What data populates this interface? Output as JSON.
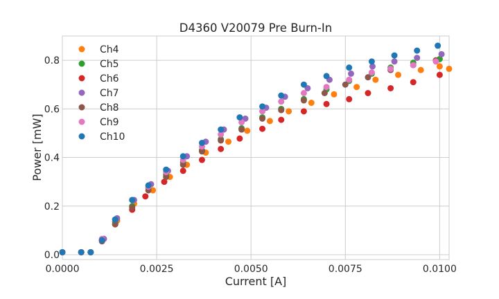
{
  "chart_data": {
    "type": "scatter",
    "title": "D4360 V20079 Pre Burn-In",
    "xlabel": "Current [A]",
    "ylabel": "Power [mW]",
    "xlim": [
      0.0,
      0.01025
    ],
    "ylim": [
      -0.02,
      0.9
    ],
    "xticks": [
      "0.0000",
      "0.0025",
      "0.0050",
      "0.0075",
      "0.0100"
    ],
    "yticks": [
      "0.0",
      "0.2",
      "0.4",
      "0.6",
      "0.8"
    ],
    "grid": true,
    "legend_position": "upper-left",
    "series": [
      {
        "name": "Ch4",
        "color": "#ff7f0e",
        "x": [
          0.0,
          0.0005,
          0.00075,
          0.0011,
          0.00145,
          0.0019,
          0.0024,
          0.00285,
          0.0033,
          0.0038,
          0.0044,
          0.0049,
          0.0055,
          0.006,
          0.0066,
          0.0072,
          0.0078,
          0.0083,
          0.0089,
          0.0095,
          0.01,
          0.01025
        ],
        "y": [
          0.01,
          0.01,
          0.01,
          0.065,
          0.14,
          0.21,
          0.265,
          0.32,
          0.37,
          0.42,
          0.465,
          0.51,
          0.55,
          0.59,
          0.625,
          0.66,
          0.69,
          0.72,
          0.74,
          0.76,
          0.775,
          0.765
        ]
      },
      {
        "name": "Ch5",
        "color": "#2ca02c",
        "x": [
          0.0,
          0.0005,
          0.00075,
          0.00105,
          0.0014,
          0.00185,
          0.00228,
          0.00275,
          0.0032,
          0.0037,
          0.0042,
          0.00475,
          0.0053,
          0.0058,
          0.0064,
          0.007,
          0.0076,
          0.0082,
          0.0087,
          0.0093,
          0.01
        ],
        "y": [
          0.01,
          0.01,
          0.01,
          0.06,
          0.135,
          0.2,
          0.275,
          0.33,
          0.38,
          0.43,
          0.475,
          0.52,
          0.565,
          0.6,
          0.64,
          0.68,
          0.715,
          0.745,
          0.77,
          0.79,
          0.805
        ]
      },
      {
        "name": "Ch6",
        "color": "#d62728",
        "x": [
          0.0,
          0.0005,
          0.00075,
          0.00105,
          0.0014,
          0.00185,
          0.0022,
          0.0027,
          0.0032,
          0.0037,
          0.0042,
          0.0047,
          0.0053,
          0.0058,
          0.0064,
          0.007,
          0.0076,
          0.0081,
          0.0087,
          0.0093,
          0.01
        ],
        "y": [
          0.01,
          0.01,
          0.01,
          0.06,
          0.125,
          0.185,
          0.24,
          0.3,
          0.345,
          0.39,
          0.435,
          0.478,
          0.518,
          0.555,
          0.59,
          0.62,
          0.64,
          0.665,
          0.685,
          0.71,
          0.74
        ]
      },
      {
        "name": "Ch7",
        "color": "#9467bd",
        "x": [
          0.0,
          0.0005,
          0.00075,
          0.0011,
          0.00145,
          0.0019,
          0.00235,
          0.0028,
          0.0033,
          0.0038,
          0.00428,
          0.00485,
          0.0054,
          0.0059,
          0.0065,
          0.00708,
          0.00765,
          0.00822,
          0.0088,
          0.0094,
          0.01005
        ],
        "y": [
          0.01,
          0.01,
          0.01,
          0.065,
          0.15,
          0.225,
          0.29,
          0.345,
          0.405,
          0.465,
          0.515,
          0.56,
          0.605,
          0.65,
          0.685,
          0.72,
          0.745,
          0.775,
          0.795,
          0.81,
          0.825
        ]
      },
      {
        "name": "Ch8",
        "color": "#8c564b",
        "x": [
          0.0,
          0.0005,
          0.00075,
          0.00105,
          0.0014,
          0.00185,
          0.00228,
          0.00275,
          0.0032,
          0.0037,
          0.0042,
          0.00475,
          0.0053,
          0.0058,
          0.0064,
          0.00695,
          0.0075,
          0.0081,
          0.0087,
          0.0093,
          0.0099
        ],
        "y": [
          0.01,
          0.01,
          0.01,
          0.055,
          0.125,
          0.195,
          0.265,
          0.32,
          0.37,
          0.425,
          0.47,
          0.515,
          0.56,
          0.595,
          0.635,
          0.665,
          0.7,
          0.73,
          0.76,
          0.78,
          0.8
        ]
      },
      {
        "name": "Ch9",
        "color": "#e377c2",
        "x": [
          0.0,
          0.0005,
          0.00075,
          0.00105,
          0.0014,
          0.00185,
          0.00228,
          0.00275,
          0.0032,
          0.0037,
          0.0042,
          0.00475,
          0.0053,
          0.0058,
          0.0064,
          0.007,
          0.0076,
          0.0082,
          0.0087,
          0.0093,
          0.0099
        ],
        "y": [
          0.01,
          0.01,
          0.01,
          0.065,
          0.145,
          0.225,
          0.28,
          0.34,
          0.39,
          0.445,
          0.495,
          0.545,
          0.59,
          0.63,
          0.665,
          0.69,
          0.72,
          0.75,
          0.765,
          0.78,
          0.795
        ]
      },
      {
        "name": "Ch10",
        "color": "#1f77b4",
        "x": [
          0.0,
          0.0005,
          0.00075,
          0.00105,
          0.0014,
          0.00185,
          0.00228,
          0.00275,
          0.0032,
          0.0037,
          0.0042,
          0.0047,
          0.0053,
          0.0058,
          0.0064,
          0.007,
          0.0076,
          0.0082,
          0.0088,
          0.0094,
          0.00995
        ],
        "y": [
          0.01,
          0.01,
          0.01,
          0.06,
          0.145,
          0.225,
          0.285,
          0.35,
          0.405,
          0.46,
          0.515,
          0.565,
          0.61,
          0.655,
          0.7,
          0.735,
          0.77,
          0.795,
          0.82,
          0.84,
          0.86
        ]
      }
    ]
  }
}
